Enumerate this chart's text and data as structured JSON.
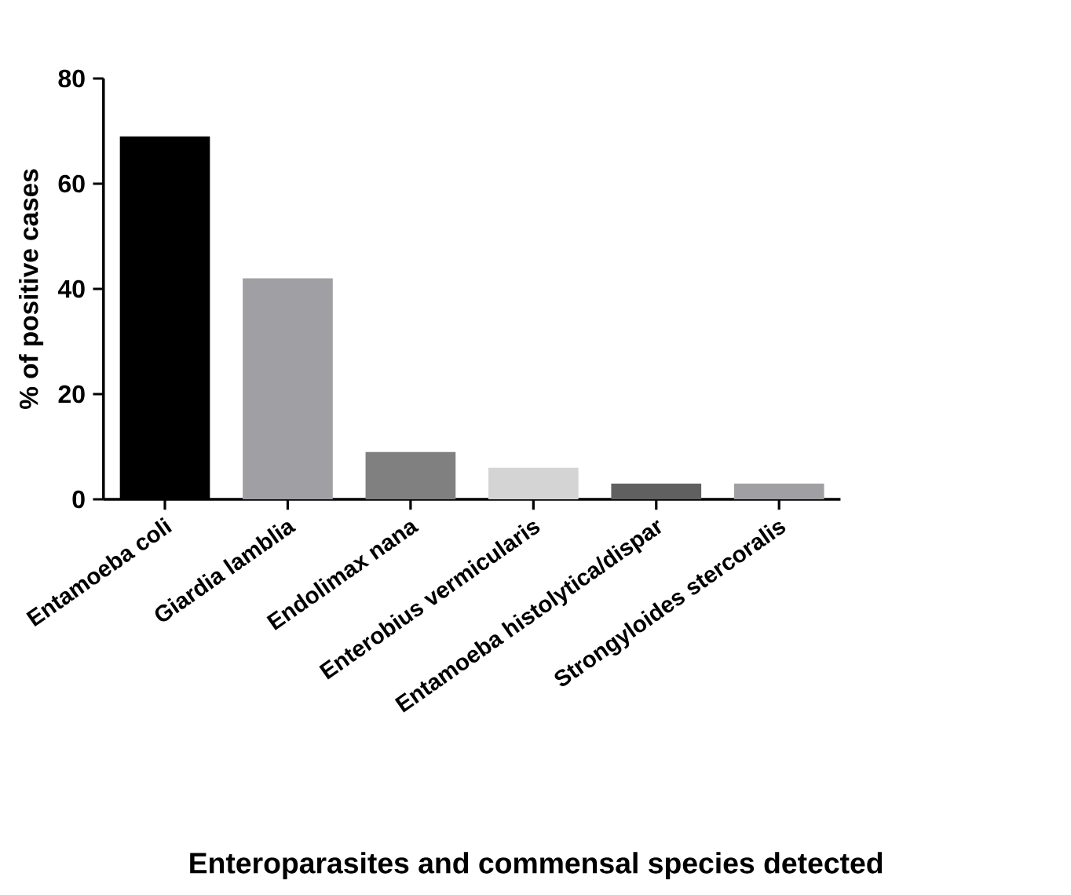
{
  "chart_data": {
    "type": "bar",
    "categories": [
      "Entamoeba coli",
      "Giardia lamblia",
      "Endolimax nana",
      "Enterobius vermicularis",
      "Entamoeba histolytica/dispar",
      "Strongyloides stercoralis"
    ],
    "values": [
      69,
      42,
      9,
      6,
      3,
      3
    ],
    "colors": [
      "#000000",
      "#a0a0a4",
      "#808080",
      "#d4d4d4",
      "#606060",
      "#a0a0a4"
    ],
    "xlabel": "Enteroparasites and commensal species detected",
    "ylabel": "% of positive cases",
    "ylim": [
      0,
      80
    ],
    "yticks": [
      0,
      20,
      40,
      60,
      80
    ],
    "grid": false
  }
}
